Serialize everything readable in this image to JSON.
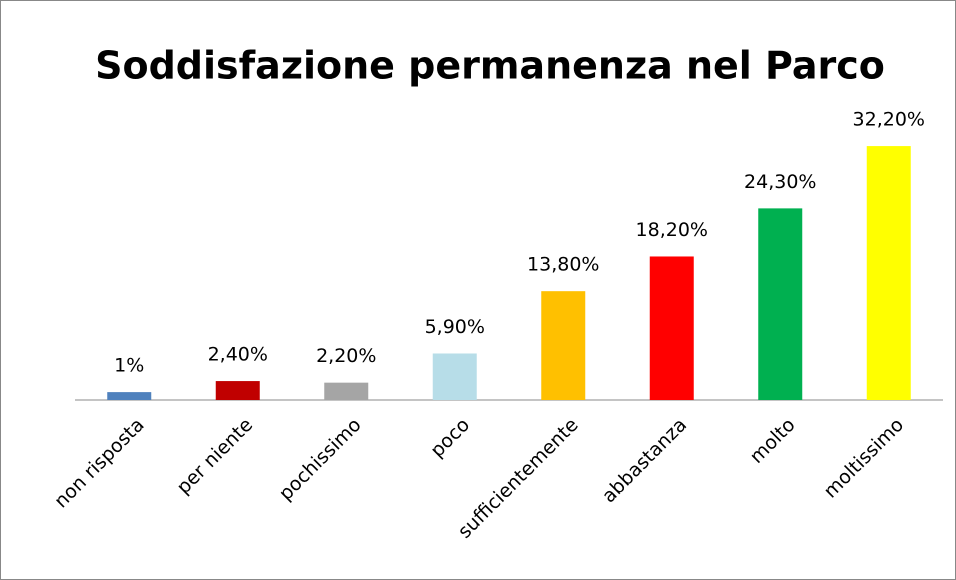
{
  "chart_data": {
    "type": "bar",
    "title": "Soddisfazione permanenza nel Parco",
    "categories": [
      "non risposta",
      "per niente",
      "pochissimo",
      "poco",
      "sufficientemente",
      "abbastanza",
      "molto",
      "moltissimo"
    ],
    "values": [
      1,
      2.4,
      2.2,
      5.9,
      13.8,
      18.2,
      24.3,
      32.2
    ],
    "value_labels": [
      "1%",
      "2,40%",
      "2,20%",
      "5,90%",
      "13,80%",
      "18,20%",
      "24,30%",
      "32,20%"
    ],
    "colors": [
      "#4f81bd",
      "#c00000",
      "#a5a5a5",
      "#b7dde8",
      "#ffc000",
      "#ff0000",
      "#00b050",
      "#ffff00"
    ],
    "ylim": [
      0,
      35
    ]
  }
}
